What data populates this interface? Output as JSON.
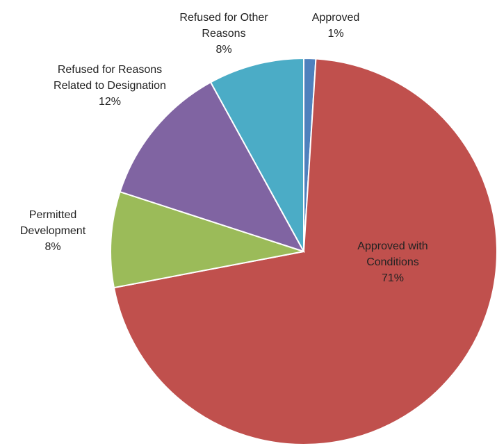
{
  "chart_data": {
    "type": "pie",
    "categories": [
      "Approved",
      "Approved with Conditions",
      "Permitted Development",
      "Refused for Reasons Related to Designation",
      "Refused for Other Reasons"
    ],
    "values": [
      1,
      71,
      8,
      12,
      8
    ],
    "value_labels": [
      "1%",
      "71%",
      "8%",
      "12%",
      "8%"
    ],
    "colors": [
      "#4F81BD",
      "#C0504D",
      "#9BBB59",
      "#8064A2",
      "#4BACC6"
    ]
  }
}
